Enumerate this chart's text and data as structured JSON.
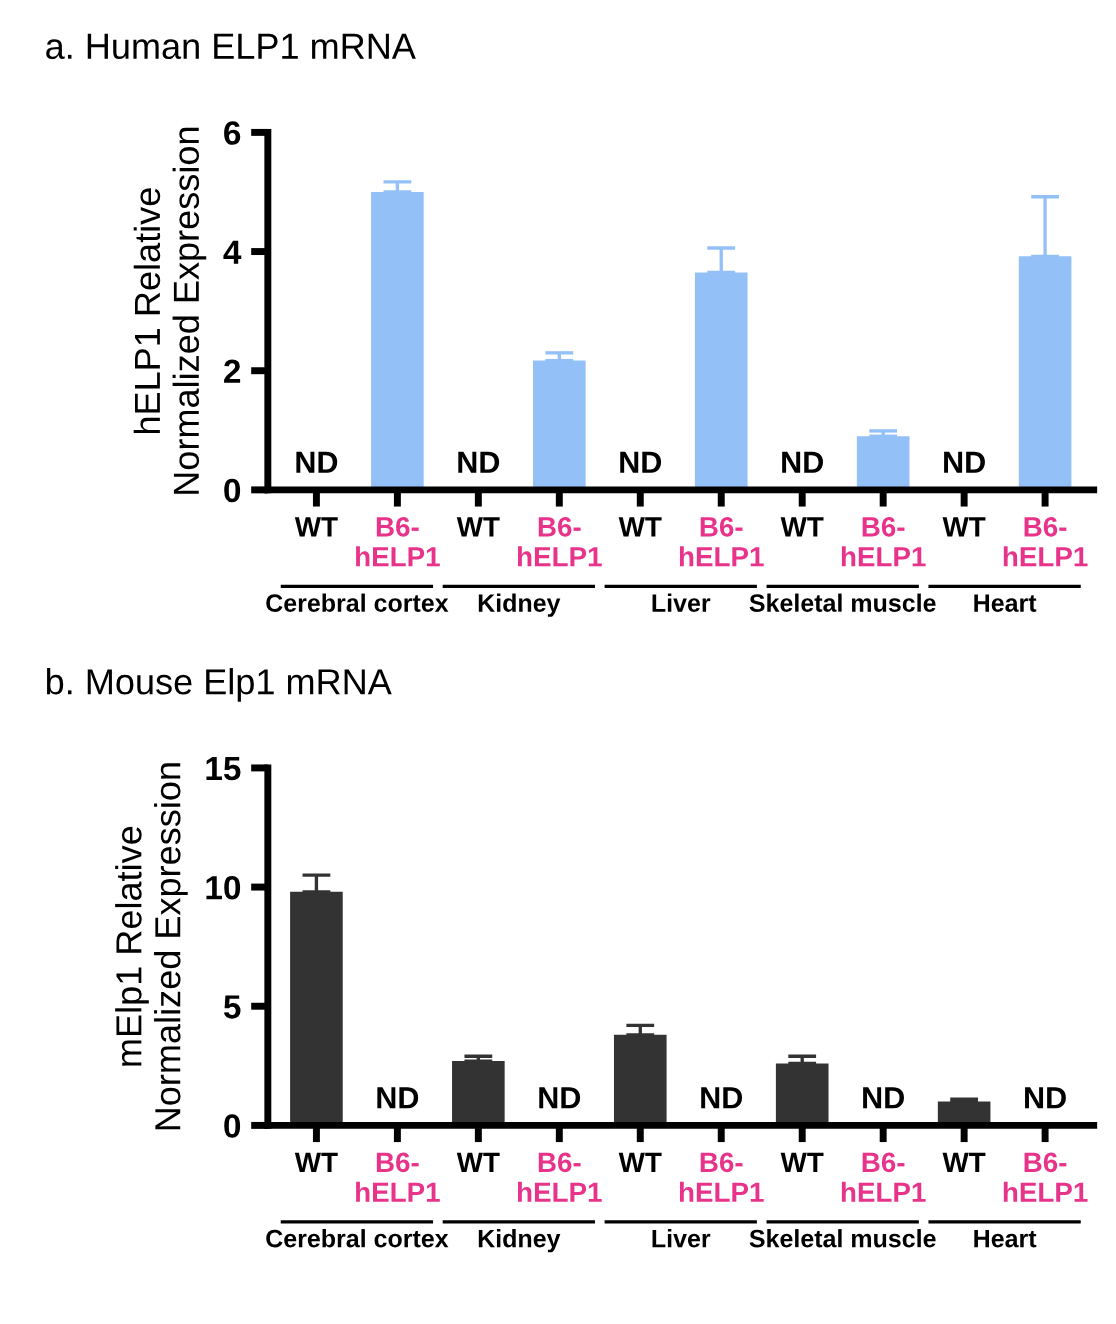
{
  "chart_data": [
    {
      "type": "bar",
      "title": "a. Human ELP1 mRNA",
      "ylabel": "hELP1 Relative\nNormalized Expression",
      "categories": [
        "WT",
        "B6-\nhELP1",
        "WT",
        "B6-\nhELP1",
        "WT",
        "B6-\nhELP1",
        "WT",
        "B6-\nhELP1",
        "WT",
        "B6-\nhELP1"
      ],
      "values": [
        null,
        5.0,
        null,
        2.17,
        null,
        3.65,
        null,
        0.9,
        null,
        3.92
      ],
      "errors": [
        null,
        [
          5.0,
          5.17
        ],
        null,
        [
          2.17,
          2.3
        ],
        null,
        [
          3.65,
          4.06
        ],
        null,
        [
          0.9,
          0.99
        ],
        null,
        [
          3.92,
          4.92
        ]
      ],
      "value_labels": [
        "ND",
        null,
        "ND",
        null,
        "ND",
        null,
        "ND",
        null,
        "ND",
        null
      ],
      "color": "#94c0f8",
      "ylim": [
        0,
        6
      ],
      "yticks": [
        0,
        2,
        4,
        6
      ],
      "grid": false,
      "annotations": [
        "Cerebral cortex",
        "Kidney",
        "Liver",
        "Skeletal muscle",
        "Heart"
      ]
    },
    {
      "type": "bar",
      "title": "b. Mouse Elp1 mRNA",
      "ylabel": "mElp1 Relative\nNormalized Expression",
      "categories": [
        "WT",
        "B6-\nhELP1",
        "WT",
        "B6-\nhELP1",
        "WT",
        "B6-\nhELP1",
        "WT",
        "B6-\nhELP1",
        "WT",
        "B6-\nhELP1"
      ],
      "values": [
        9.8,
        null,
        2.7,
        null,
        3.8,
        null,
        2.6,
        null,
        1.0,
        null
      ],
      "errors": [
        [
          9.8,
          10.5
        ],
        null,
        [
          2.7,
          2.9
        ],
        null,
        [
          3.8,
          4.2
        ],
        null,
        [
          2.6,
          2.9
        ],
        null,
        [
          1.0,
          1.1
        ],
        null
      ],
      "value_labels": [
        null,
        "ND",
        null,
        "ND",
        null,
        "ND",
        null,
        "ND",
        null,
        "ND"
      ],
      "color": "#333333",
      "ylim": [
        0,
        15
      ],
      "yticks": [
        0,
        5,
        10,
        15
      ],
      "grid": false,
      "annotations": [
        "Cerebral cortex",
        "Kidney",
        "Liver",
        "Skeletal muscle",
        "Heart"
      ]
    }
  ]
}
